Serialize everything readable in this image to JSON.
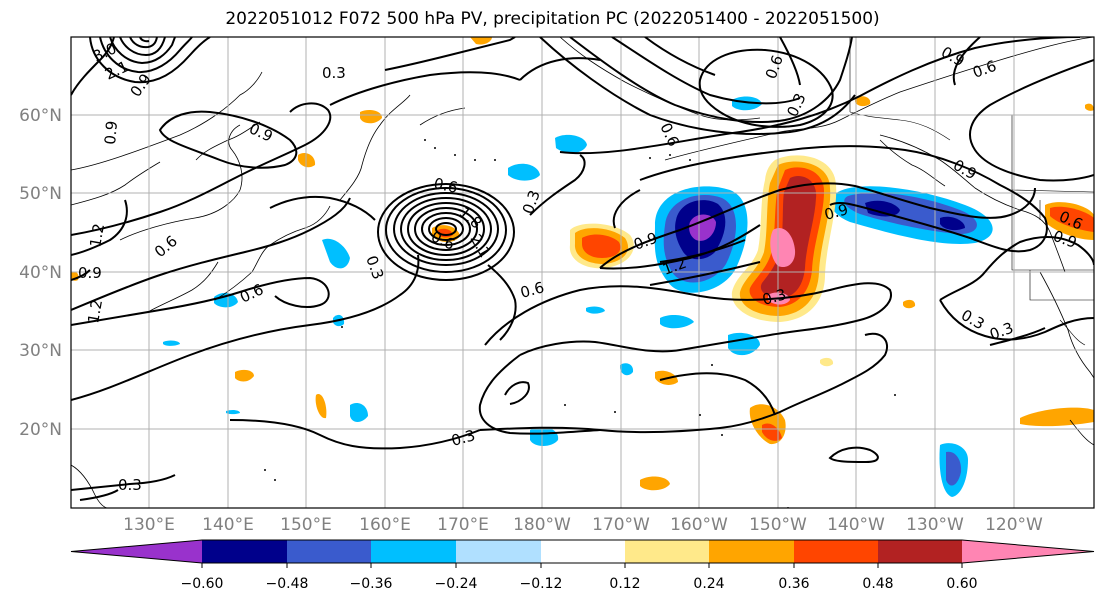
{
  "title": "2022051012 F072 500 hPa PV, precipitation PC (2022051400 - 2022051500)",
  "map": {
    "lon_labels": [
      "130°E",
      "140°E",
      "150°E",
      "160°E",
      "170°E",
      "180°W",
      "170°W",
      "160°W",
      "150°W",
      "140°W",
      "130°W",
      "120°W"
    ],
    "lat_labels": [
      "60°N",
      "50°N",
      "40°N",
      "30°N",
      "20°N"
    ],
    "label_color": "#808080",
    "grid_color": "#b0b0b0"
  },
  "contour_labels": [
    "3.0",
    "2.1",
    "0.9",
    "0.3",
    "0.9",
    "0.9",
    "0.6",
    "1.8",
    "2.1",
    "0.6",
    "0.6",
    "0.9",
    "1.2",
    "0.6",
    "0.6",
    "1.2",
    "0.9",
    "0.3",
    "0.6",
    "0.3",
    "0.3",
    "1.2",
    "0.9",
    "0.3",
    "0.9",
    "0.6",
    "0.9",
    "0.6",
    "0.9",
    "0.3",
    "0.3",
    "0.3",
    "0.3",
    "0.6"
  ],
  "colorbar": {
    "ticks": [
      "−0.60",
      "−0.48",
      "−0.36",
      "−0.24",
      "−0.12",
      "0.12",
      "0.24",
      "0.36",
      "0.48",
      "0.60"
    ],
    "colors": [
      "#9932CC",
      "#00008B",
      "#3A5BCD",
      "#00BFFF",
      "#B0E0FF",
      "#FFFFFF",
      "#FFE98A",
      "#FFA500",
      "#FF4500",
      "#B22222",
      "#FF85B3"
    ]
  }
}
